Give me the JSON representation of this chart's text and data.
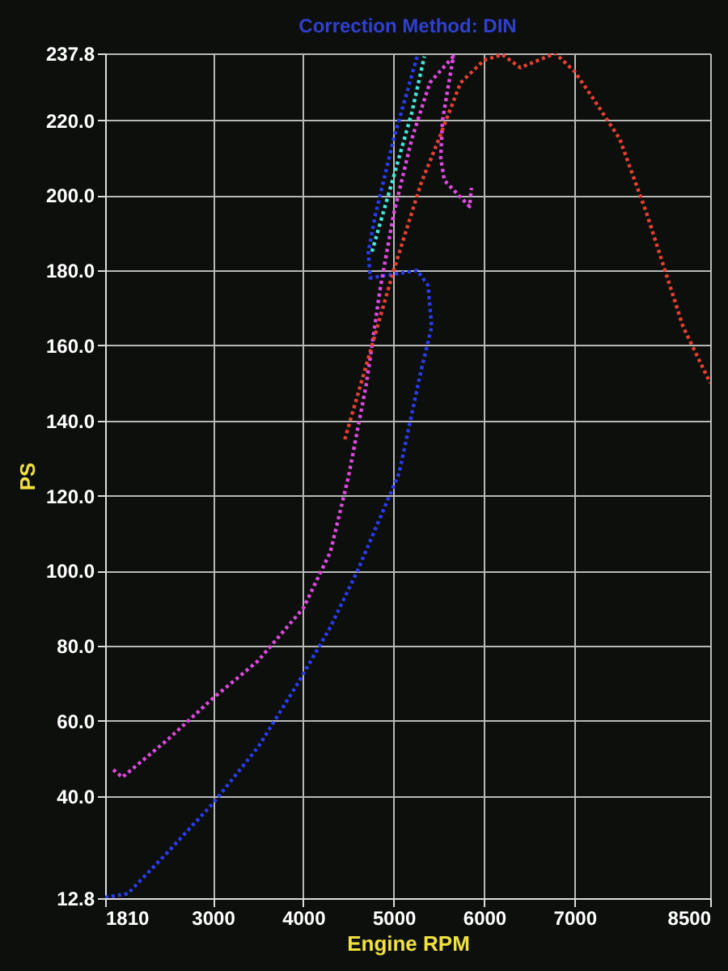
{
  "chart_data": {
    "type": "line",
    "title": "Correction Method: DIN",
    "xlabel": "Engine RPM",
    "ylabel": "PS",
    "xlim": [
      1810,
      8500
    ],
    "xticks": [
      1810,
      3000,
      4000,
      5000,
      6000,
      7000,
      8500
    ],
    "ylim": [
      12.8,
      237.8
    ],
    "yticks": [
      {
        "value": 12.8,
        "label": "12.8"
      },
      {
        "value": 40,
        "label": "40.0"
      },
      {
        "value": 60,
        "label": "60.0"
      },
      {
        "value": 80,
        "label": "80.0"
      },
      {
        "value": 100,
        "label": "100.0"
      },
      {
        "value": 120,
        "label": "120.0"
      },
      {
        "value": 140,
        "label": "140.0"
      },
      {
        "value": 160,
        "label": "160.0"
      },
      {
        "value": 180,
        "label": "180.0"
      },
      {
        "value": 200,
        "label": "200.0"
      },
      {
        "value": 220,
        "label": "220.0"
      },
      {
        "value": 237.8,
        "label": "237.8"
      }
    ],
    "grid": true,
    "line_style": "dotted",
    "series": [
      {
        "color": "#2a3cf0",
        "x": [
          1810,
          2060,
          2500,
          3000,
          3500,
          3940,
          4300,
          4600,
          5060,
          5300,
          5420,
          5380,
          5260,
          5000,
          4740,
          4720,
          4800,
          5000,
          5260
        ],
        "values": [
          13,
          14,
          25,
          38,
          53,
          70,
          85,
          100,
          126,
          153,
          165,
          176,
          180,
          179,
          178,
          185,
          195,
          215,
          237
        ]
      },
      {
        "color": "#e048e0",
        "x": [
          1900,
          2000,
          2500,
          3000,
          3500,
          4000,
          4300,
          4500,
          4700,
          4850,
          5000,
          5200,
          5400,
          5660,
          5540,
          5520,
          5560,
          5840,
          5860
        ],
        "values": [
          47,
          45,
          55,
          66,
          76,
          90,
          105,
          125,
          150,
          175,
          195,
          215,
          230,
          237,
          220,
          210,
          204,
          197,
          202
        ]
      },
      {
        "color": "#e84030",
        "x": [
          4460,
          4700,
          5000,
          5300,
          5500,
          5740,
          6000,
          6200,
          6400,
          6600,
          6786,
          7000,
          7200,
          7500,
          7800,
          8000,
          8200,
          8400,
          8500
        ],
        "values": [
          135,
          155,
          180,
          203,
          215,
          230,
          236,
          237.5,
          234,
          236,
          237.8,
          233,
          226,
          215,
          195,
          180,
          165,
          155,
          150
        ]
      },
      {
        "color": "#40e8e0",
        "x": [
          4760,
          5000,
          5200,
          5340
        ],
        "values": [
          185,
          205,
          222,
          237
        ]
      }
    ]
  }
}
